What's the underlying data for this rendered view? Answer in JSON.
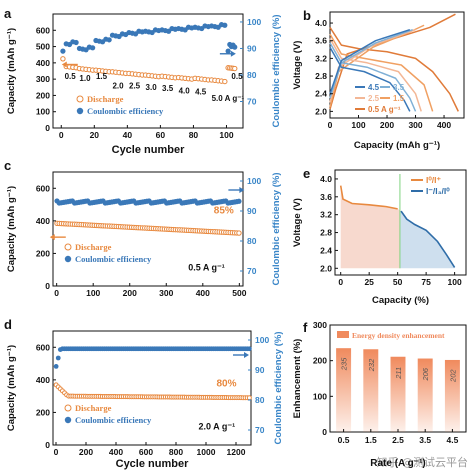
{
  "colors": {
    "discharge": "#e8893f",
    "ce": "#3a78b8",
    "ce_axis": "#3a86c8",
    "fill_orange": "#f6d2c6",
    "fill_blue": "#c9dcec",
    "bar": "#f08a5d",
    "divider": "#7fd37f"
  },
  "watermark": "知乎 @测试云平台",
  "chart_data": [
    {
      "panel": "a",
      "type": "scatter",
      "xlabel": "Cycle number",
      "ylabel": "Capacity (mAh g⁻¹)",
      "y2label": "Coulombic efficiency (%)",
      "xlim": [
        -5,
        110
      ],
      "ylim": [
        0,
        700
      ],
      "y2lim": [
        60,
        103
      ],
      "xticks": [
        0,
        20,
        40,
        60,
        80,
        100
      ],
      "yticks": [
        0,
        100,
        200,
        300,
        400,
        500,
        600
      ],
      "y2ticks": [
        70,
        80,
        90,
        100
      ],
      "legend": [
        "Discharge",
        "Coulombic efficiency"
      ],
      "rate_labels": [
        {
          "text": "0.5",
          "x": 2,
          "y": 300
        },
        {
          "text": "1.0",
          "x": 11,
          "y": 290
        },
        {
          "text": "1.5",
          "x": 21,
          "y": 302
        },
        {
          "text": "2.0",
          "x": 31,
          "y": 243
        },
        {
          "text": "2.5",
          "x": 41,
          "y": 242
        },
        {
          "text": "3.0",
          "x": 51,
          "y": 234
        },
        {
          "text": "3.5",
          "x": 61,
          "y": 228
        },
        {
          "text": "4.0",
          "x": 71,
          "y": 212
        },
        {
          "text": "4.5",
          "x": 81,
          "y": 205
        },
        {
          "text": "5.0 A g⁻¹",
          "x": 91,
          "y": 167
        },
        {
          "text": "0.5",
          "x": 103,
          "y": 300
        }
      ],
      "segments": [
        {
          "from": 1,
          "to": 10,
          "discharge": 380,
          "ce": 92
        },
        {
          "from": 11,
          "to": 20,
          "discharge": 365,
          "ce": 90
        },
        {
          "from": 21,
          "to": 30,
          "discharge": 355,
          "ce": 93
        },
        {
          "from": 31,
          "to": 40,
          "discharge": 345,
          "ce": 95
        },
        {
          "from": 41,
          "to": 50,
          "discharge": 335,
          "ce": 96
        },
        {
          "from": 51,
          "to": 60,
          "discharge": 325,
          "ce": 96.5
        },
        {
          "from": 61,
          "to": 70,
          "discharge": 318,
          "ce": 97
        },
        {
          "from": 71,
          "to": 80,
          "discharge": 310,
          "ce": 97.5
        },
        {
          "from": 81,
          "to": 90,
          "discharge": 305,
          "ce": 98
        },
        {
          "from": 91,
          "to": 100,
          "discharge": 295,
          "ce": 98.5
        },
        {
          "from": 101,
          "to": 105,
          "discharge": 370,
          "ce": 91
        }
      ],
      "arrows": [
        {
          "x": 10,
          "y": 390,
          "dir": "left",
          "series": "discharge"
        },
        {
          "x": 96,
          "y": 88,
          "dir": "right",
          "series": "ce",
          "axis": "y2"
        }
      ]
    },
    {
      "panel": "b",
      "type": "line",
      "xlabel": "Capacity (mAh g⁻¹)",
      "ylabel": "Voltage (V)",
      "xlim": [
        0,
        470
      ],
      "ylim": [
        1.85,
        4.25
      ],
      "xticks": [
        0,
        100,
        200,
        300,
        400
      ],
      "yticks": [
        2.0,
        2.4,
        2.8,
        3.2,
        3.6,
        4.0
      ],
      "legend": [
        "4.5",
        "3.5",
        "2.5",
        "1.5",
        "0.5 A g⁻¹"
      ],
      "series": [
        {
          "name": "0.5 A g⁻¹",
          "color": "#e07b39",
          "discharge": [
            [
              0,
              3.9
            ],
            [
              40,
              3.5
            ],
            [
              100,
              3.42
            ],
            [
              200,
              3.35
            ],
            [
              300,
              3.2
            ],
            [
              360,
              2.9
            ],
            [
              420,
              2.4
            ],
            [
              450,
              2.0
            ]
          ],
          "charge": [
            [
              0,
              2.05
            ],
            [
              20,
              2.5
            ],
            [
              60,
              3.3
            ],
            [
              200,
              3.6
            ],
            [
              350,
              3.9
            ],
            [
              440,
              4.2
            ]
          ]
        },
        {
          "name": "1.5",
          "color": "#f0a062",
          "discharge": [
            [
              0,
              3.75
            ],
            [
              40,
              3.3
            ],
            [
              120,
              3.2
            ],
            [
              250,
              3.05
            ],
            [
              330,
              2.6
            ],
            [
              360,
              2.0
            ]
          ],
          "charge": [
            [
              0,
              2.1
            ],
            [
              30,
              2.9
            ],
            [
              150,
              3.45
            ],
            [
              280,
              3.8
            ],
            [
              330,
              3.95
            ]
          ]
        },
        {
          "name": "2.5",
          "color": "#f3b796",
          "discharge": [
            [
              0,
              3.65
            ],
            [
              40,
              3.2
            ],
            [
              130,
              3.1
            ],
            [
              240,
              2.9
            ],
            [
              300,
              2.4
            ],
            [
              320,
              2.0
            ]
          ],
          "charge": [
            [
              0,
              2.2
            ],
            [
              30,
              3.0
            ],
            [
              150,
              3.5
            ],
            [
              300,
              3.85
            ]
          ]
        },
        {
          "name": "3.5",
          "color": "#7fb0d6",
          "discharge": [
            [
              0,
              3.55
            ],
            [
              40,
              3.1
            ],
            [
              130,
              3.0
            ],
            [
              230,
              2.75
            ],
            [
              280,
              2.3
            ],
            [
              300,
              2.0
            ]
          ],
          "charge": [
            [
              0,
              2.3
            ],
            [
              40,
              3.1
            ],
            [
              160,
              3.55
            ],
            [
              290,
              3.85
            ]
          ]
        },
        {
          "name": "4.5",
          "color": "#3a78b8",
          "discharge": [
            [
              0,
              3.45
            ],
            [
              40,
              3.0
            ],
            [
              120,
              2.9
            ],
            [
              210,
              2.65
            ],
            [
              260,
              2.25
            ],
            [
              280,
              2.0
            ]
          ],
          "charge": [
            [
              0,
              2.4
            ],
            [
              40,
              3.15
            ],
            [
              160,
              3.6
            ],
            [
              280,
              3.85
            ]
          ]
        }
      ]
    },
    {
      "panel": "c",
      "type": "scatter",
      "xlabel": "",
      "ylabel": "Capacity (mAh g⁻¹)",
      "y2label": "Coulombic efficiency (%)",
      "xlim": [
        -10,
        510
      ],
      "ylim": [
        0,
        700
      ],
      "y2lim": [
        65,
        103
      ],
      "xticks": [
        0,
        100,
        200,
        300,
        400,
        500
      ],
      "yticks": [
        0,
        200,
        400,
        600
      ],
      "y2ticks": [
        70,
        80,
        90,
        100
      ],
      "legend": [
        "Discharge",
        "Coulombic efficiency"
      ],
      "annotation": "85%",
      "rate_text": "0.5 A g⁻¹",
      "discharge_start": 385,
      "discharge_end": 325,
      "ce_value": 93
    },
    {
      "panel": "d",
      "type": "scatter",
      "xlabel": "Cycle number",
      "ylabel": "Capacity (mAh g⁻¹)",
      "y2label": "Coulombic efficiency (%)",
      "xlim": [
        -20,
        1300
      ],
      "ylim": [
        0,
        700
      ],
      "y2lim": [
        65,
        103
      ],
      "xticks": [
        0,
        200,
        400,
        600,
        800,
        1000,
        1200
      ],
      "yticks": [
        0,
        200,
        400,
        600
      ],
      "y2ticks": [
        70,
        80,
        90,
        100
      ],
      "legend": [
        "Discharge",
        "Coulombic efficiency"
      ],
      "annotation": "80%",
      "rate_text": "2.0 A g⁻¹",
      "discharge_start": 370,
      "discharge_plateau": 300,
      "discharge_end": 290,
      "ce_value": 97
    },
    {
      "panel": "e",
      "type": "area",
      "xlabel": "Capacity (%)",
      "ylabel": "Voltage (V)",
      "xlim": [
        -5,
        110
      ],
      "ylim": [
        1.85,
        4.2
      ],
      "xticks": [
        0,
        25,
        50,
        75,
        100
      ],
      "yticks": [
        2.0,
        2.4,
        2.8,
        3.2,
        3.6,
        4.0
      ],
      "legend": [
        "I⁰/I⁺",
        "I⁻/I₃/I⁰"
      ],
      "divider_x": 52,
      "curve": [
        [
          0,
          3.85
        ],
        [
          2,
          3.55
        ],
        [
          10,
          3.45
        ],
        [
          25,
          3.42
        ],
        [
          40,
          3.38
        ],
        [
          50,
          3.33
        ],
        [
          53,
          3.28
        ],
        [
          58,
          3.1
        ],
        [
          65,
          2.98
        ],
        [
          75,
          2.85
        ],
        [
          85,
          2.6
        ],
        [
          93,
          2.3
        ],
        [
          100,
          2.02
        ]
      ]
    },
    {
      "panel": "f",
      "type": "bar",
      "xlabel": "Rate (A g⁻¹)",
      "ylabel": "Enhancement (%)",
      "ylim": [
        0,
        300
      ],
      "yticks": [
        0,
        100,
        200,
        300
      ],
      "legend": [
        "Energy density enhancement"
      ],
      "categories": [
        "0.5",
        "1.5",
        "2.5",
        "3.5",
        "4.5"
      ],
      "values": [
        235,
        232,
        211,
        206,
        202
      ]
    }
  ]
}
